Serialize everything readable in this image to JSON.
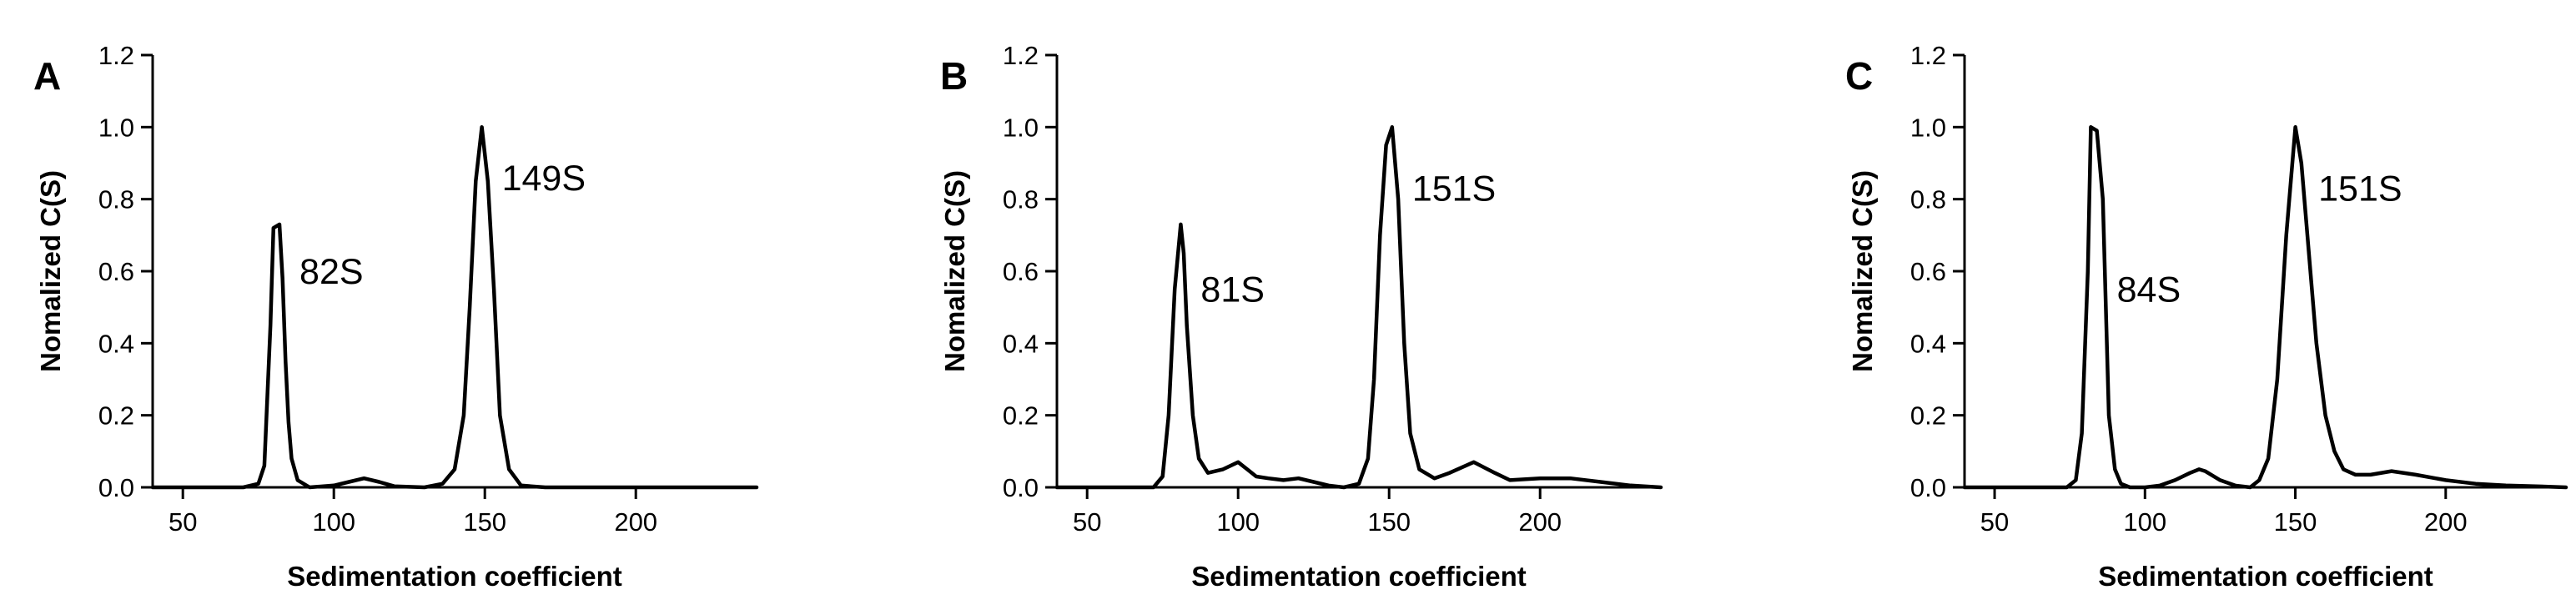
{
  "chart_data": [
    {
      "type": "line",
      "panel": "A",
      "xlabel": "Sedimentation coefficient",
      "ylabel": "Nomalized C(S)",
      "xlim": [
        40,
        240
      ],
      "ylim": [
        0,
        1.2
      ],
      "xticks": [
        50,
        100,
        150,
        200
      ],
      "yticks": [
        0.0,
        0.2,
        0.4,
        0.6,
        0.8,
        1.0,
        1.2
      ],
      "grid": false,
      "series": [
        {
          "x": [
            40,
            70,
            75,
            77,
            79,
            80,
            82,
            83,
            84,
            85,
            86,
            88,
            92,
            100,
            105,
            110,
            115,
            120,
            130,
            136,
            140,
            143,
            145,
            147,
            149,
            151,
            153,
            155,
            158,
            162,
            170,
            200,
            240
          ],
          "values": [
            0,
            0,
            0.01,
            0.06,
            0.45,
            0.72,
            0.73,
            0.58,
            0.35,
            0.18,
            0.08,
            0.02,
            0,
            0.005,
            0.015,
            0.025,
            0.015,
            0.003,
            0,
            0.01,
            0.05,
            0.2,
            0.5,
            0.85,
            1.0,
            0.85,
            0.55,
            0.2,
            0.05,
            0.005,
            0,
            0,
            0
          ]
        }
      ],
      "annotations": [
        {
          "text": "82S",
          "x": 82,
          "y": 0.6
        },
        {
          "text": "149S",
          "x": 149,
          "y": 0.86
        }
      ]
    },
    {
      "type": "line",
      "panel": "B",
      "xlabel": "Sedimentation coefficient",
      "ylabel": "Nomalized C(S)",
      "xlim": [
        40,
        240
      ],
      "ylim": [
        0,
        1.2
      ],
      "xticks": [
        50,
        100,
        150,
        200
      ],
      "yticks": [
        0.0,
        0.2,
        0.4,
        0.6,
        0.8,
        1.0,
        1.2
      ],
      "grid": false,
      "series": [
        {
          "x": [
            40,
            72,
            75,
            77,
            79,
            81,
            82,
            83,
            85,
            87,
            90,
            95,
            100,
            103,
            106,
            110,
            115,
            120,
            125,
            130,
            135,
            140,
            143,
            145,
            147,
            149,
            151,
            153,
            155,
            157,
            160,
            165,
            170,
            178,
            185,
            190,
            200,
            210,
            220,
            230,
            240
          ],
          "values": [
            0,
            0,
            0.03,
            0.2,
            0.55,
            0.73,
            0.65,
            0.45,
            0.2,
            0.08,
            0.04,
            0.05,
            0.07,
            0.05,
            0.03,
            0.025,
            0.02,
            0.025,
            0.015,
            0.005,
            0,
            0.01,
            0.08,
            0.3,
            0.7,
            0.95,
            1.0,
            0.8,
            0.4,
            0.15,
            0.05,
            0.025,
            0.04,
            0.07,
            0.04,
            0.02,
            0.025,
            0.025,
            0.015,
            0.005,
            0
          ]
        }
      ],
      "annotations": [
        {
          "text": "81S",
          "x": 81,
          "y": 0.55
        },
        {
          "text": "151S",
          "x": 151,
          "y": 0.83
        }
      ]
    },
    {
      "type": "line",
      "panel": "C",
      "xlabel": "Sedimentation coefficient",
      "ylabel": "Nomalized C(S)",
      "xlim": [
        40,
        240
      ],
      "ylim": [
        0,
        1.2
      ],
      "xticks": [
        50,
        100,
        150,
        200
      ],
      "yticks": [
        0.0,
        0.2,
        0.4,
        0.6,
        0.8,
        1.0,
        1.2
      ],
      "grid": false,
      "series": [
        {
          "x": [
            40,
            74,
            77,
            79,
            81,
            82,
            84,
            86,
            87,
            88,
            90,
            92,
            95,
            100,
            105,
            110,
            115,
            118,
            120,
            125,
            130,
            135,
            138,
            141,
            144,
            147,
            150,
            152,
            154,
            157,
            160,
            163,
            166,
            170,
            175,
            182,
            190,
            200,
            210,
            220,
            230,
            240
          ],
          "values": [
            0,
            0,
            0.02,
            0.15,
            0.6,
            1.0,
            0.99,
            0.8,
            0.5,
            0.2,
            0.05,
            0.01,
            0,
            0,
            0.005,
            0.02,
            0.04,
            0.05,
            0.045,
            0.02,
            0.005,
            0,
            0.02,
            0.08,
            0.3,
            0.7,
            1.0,
            0.9,
            0.7,
            0.4,
            0.2,
            0.1,
            0.05,
            0.035,
            0.035,
            0.045,
            0.035,
            0.02,
            0.01,
            0.005,
            0.003,
            0
          ]
        }
      ],
      "annotations": [
        {
          "text": "84S",
          "x": 84,
          "y": 0.55
        },
        {
          "text": "151S",
          "x": 151,
          "y": 0.83
        }
      ]
    }
  ]
}
